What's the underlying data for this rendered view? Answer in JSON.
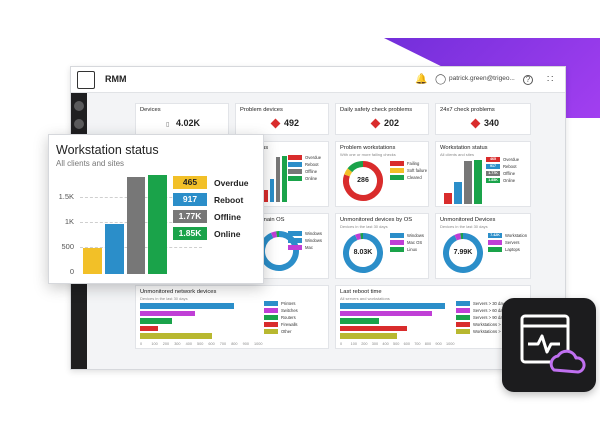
{
  "app": {
    "title": "RMM"
  },
  "topbar": {
    "user": "patrick.green@trigeo...",
    "help": "?",
    "bell_icon": "bell-icon",
    "user_icon": "user-icon",
    "grid_icon": "apps-grid-icon"
  },
  "stats": [
    {
      "label": "Devices",
      "value": "4.02K",
      "icon": "devices-icon"
    },
    {
      "label": "Problem devices",
      "value": "492",
      "icon": "alert-icon"
    },
    {
      "label": "Daily safety check problems",
      "value": "202",
      "icon": "alert-icon"
    },
    {
      "label": "24x7 check problems",
      "value": "340",
      "icon": "alert-icon"
    }
  ],
  "row2": {
    "partial": {
      "title": "us",
      "legend": [
        {
          "value": "",
          "label": "Overdue",
          "color": "#d92c2c"
        },
        {
          "value": "",
          "label": "Reboot",
          "color": "#2b8ec9"
        },
        {
          "value": "",
          "label": "Offline",
          "color": "#777777"
        },
        {
          "value": "",
          "label": "Online",
          "color": "#1aa34a"
        }
      ]
    },
    "problem_workstations": {
      "title": "Problem workstations",
      "subtitle": "With one or more failing checks",
      "center": "286",
      "legend": [
        {
          "value": "",
          "label": "Failing",
          "color": "#d92c2c"
        },
        {
          "value": "",
          "label": "Soft failure",
          "color": "#f2c028"
        },
        {
          "value": "",
          "label": "Cleared",
          "color": "#1aa34a"
        }
      ]
    },
    "workstation_status": {
      "title": "Workstation status",
      "subtitle": "All clients and sites",
      "legend": [
        {
          "value": "465",
          "label": "Overdue",
          "color": "#d92c2c"
        },
        {
          "value": "917",
          "label": "Reboot",
          "color": "#2b8ec9"
        },
        {
          "value": "1.77K",
          "label": "Offline",
          "color": "#777777"
        },
        {
          "value": "1.85K",
          "label": "Online",
          "color": "#1aa34a"
        }
      ]
    }
  },
  "row3": {
    "partial": {
      "title": "main OS",
      "legend": [
        {
          "value": "",
          "label": "Windows",
          "color": "#2b8ec9"
        },
        {
          "value": "",
          "label": "Windows",
          "color": "#2b8ec9"
        },
        {
          "value": "",
          "label": "Mac",
          "color": "#c03fd6"
        }
      ]
    },
    "unmonitored_os": {
      "title": "Unmonitored devices by OS",
      "subtitle": "Devices in the last 30 days",
      "center": "8.03K",
      "legend": [
        {
          "value": "",
          "label": "Windows",
          "color": "#2b8ec9"
        },
        {
          "value": "",
          "label": "Mac OS",
          "color": "#c03fd6"
        },
        {
          "value": "",
          "label": "Linux",
          "color": "#1aa34a"
        }
      ]
    },
    "unmonitored_devices": {
      "title": "Unmonitored Devices",
      "subtitle": "Devices in the last 30 days",
      "center": "7.99K",
      "legend": [
        {
          "value": "7.42K",
          "label": "Workstation",
          "color": "#2b8ec9"
        },
        {
          "value": "",
          "label": "Servers",
          "color": "#c03fd6"
        },
        {
          "value": "",
          "label": "Laptops",
          "color": "#1aa34a"
        }
      ]
    }
  },
  "row4": {
    "network": {
      "title": "Unmonitored network devices",
      "subtitle": "Devices in the last 30 days",
      "legend": [
        {
          "value": "",
          "label": "Printers",
          "color": "#2b8ec9"
        },
        {
          "value": "",
          "label": "Switches",
          "color": "#c03fd6"
        },
        {
          "value": "",
          "label": "Routers",
          "color": "#1aa34a"
        },
        {
          "value": "",
          "label": "Firewalls",
          "color": "#d92c2c"
        },
        {
          "value": "",
          "label": "Other",
          "color": "#b8b830"
        }
      ],
      "axis": [
        "0",
        "100",
        "200",
        "300",
        "400",
        "500",
        "600",
        "700",
        "800",
        "900",
        "1000"
      ]
    },
    "reboot": {
      "title": "Last reboot time",
      "subtitle": "All servers and workstations",
      "legend": [
        {
          "value": "",
          "label": "Servers > 30 days",
          "color": "#2b8ec9"
        },
        {
          "value": "",
          "label": "Servers > 60 days",
          "color": "#c03fd6"
        },
        {
          "value": "",
          "label": "Servers > 90 days",
          "color": "#1aa34a"
        },
        {
          "value": "",
          "label": "Workstations > 30 days",
          "color": "#d92c2c"
        },
        {
          "value": "",
          "label": "Workstations > 60 days",
          "color": "#b8b830"
        }
      ],
      "axis": [
        "0",
        "100",
        "200",
        "300",
        "400",
        "500",
        "600",
        "700",
        "800",
        "900",
        "1000"
      ]
    }
  },
  "overlay": {
    "title": "Workstation status",
    "subtitle": "All clients and sites",
    "ticks": [
      "1.5K",
      "1K",
      "500",
      "0"
    ],
    "legend": [
      {
        "value": "465",
        "label": "Overdue",
        "color": "#f2c028",
        "text": "#222222"
      },
      {
        "value": "917",
        "label": "Reboot",
        "color": "#2b8ec9",
        "text": "#ffffff"
      },
      {
        "value": "1.77K",
        "label": "Offline",
        "color": "#777777",
        "text": "#ffffff"
      },
      {
        "value": "1.85K",
        "label": "Online",
        "color": "#1aa34a",
        "text": "#ffffff"
      }
    ]
  },
  "chart_data": [
    {
      "type": "bar",
      "title": "Workstation status",
      "subtitle": "All clients and sites",
      "categories": [
        "Overdue",
        "Reboot",
        "Offline",
        "Online"
      ],
      "values": [
        465,
        917,
        1770,
        1850
      ],
      "colors": [
        "#f2c028",
        "#2b8ec9",
        "#777777",
        "#1aa34a"
      ],
      "ylim": [
        0,
        1800
      ],
      "yticks": [
        "0",
        "500",
        "1K",
        "1.5K"
      ],
      "grid": true
    },
    {
      "type": "pie",
      "title": "Problem workstations",
      "center_label": "286",
      "categories": [
        "Failing",
        "Soft failure",
        "Cleared"
      ],
      "values": [
        230,
        16,
        40
      ],
      "colors": [
        "#d92c2c",
        "#f2c028",
        "#1aa34a"
      ]
    },
    {
      "type": "pie",
      "title": "Unmonitored devices by OS",
      "center_label": "8.03K",
      "categories": [
        "Windows",
        "Mac OS",
        "Linux"
      ],
      "values": [
        7500,
        350,
        180
      ],
      "colors": [
        "#2b8ec9",
        "#c03fd6",
        "#1aa34a"
      ]
    },
    {
      "type": "pie",
      "title": "Unmonitored Devices",
      "center_label": "7.99K",
      "categories": [
        "Workstation",
        "Servers",
        "Laptops"
      ],
      "values": [
        7420,
        400,
        170
      ],
      "colors": [
        "#2b8ec9",
        "#c03fd6",
        "#1aa34a"
      ]
    },
    {
      "type": "bar",
      "title": "Unmonitored network devices",
      "categories": [
        "Printers",
        "Switches",
        "Routers",
        "Firewalls",
        "Other"
      ],
      "values": [
        780,
        460,
        270,
        150,
        600
      ],
      "colors": [
        "#2b8ec9",
        "#c03fd6",
        "#1aa34a",
        "#d92c2c",
        "#b8b830"
      ],
      "xlim": [
        0,
        1000
      ]
    },
    {
      "type": "bar",
      "title": "Last reboot time",
      "categories": [
        "Servers > 30 days",
        "Servers > 60 days",
        "Servers > 90 days",
        "Workstations > 30 days",
        "Workstations > 60 days"
      ],
      "values": [
        940,
        820,
        350,
        600,
        510
      ],
      "colors": [
        "#2b8ec9",
        "#c03fd6",
        "#1aa34a",
        "#d92c2c",
        "#b8b830"
      ],
      "xlim": [
        0,
        1000
      ]
    }
  ]
}
